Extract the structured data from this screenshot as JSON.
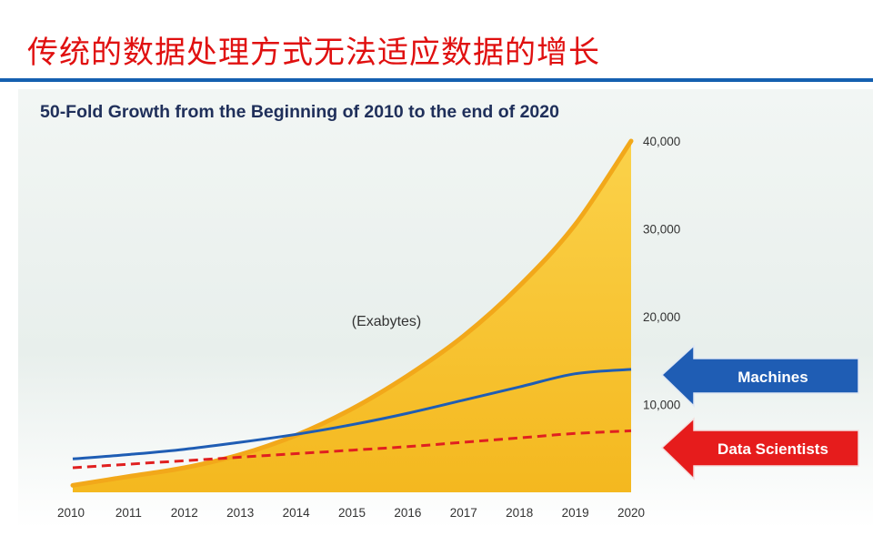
{
  "slide": {
    "title": "传统的数据处理方式无法适应数据的增长"
  },
  "chart_data": {
    "type": "area",
    "title": "50-Fold Growth from the Beginning of 2010 to the end of 2020",
    "unit_label": "(Exabytes)",
    "x": [
      2010,
      2011,
      2012,
      2013,
      2014,
      2015,
      2016,
      2017,
      2018,
      2019,
      2020
    ],
    "xlim": [
      2010,
      2020
    ],
    "ylim": [
      0,
      40000
    ],
    "yticks": [
      10000,
      20000,
      30000,
      40000
    ],
    "ytick_labels": [
      "10,000",
      "20,000",
      "30,000",
      "40,000"
    ],
    "series": [
      {
        "values": [
          800,
          1800,
          2800,
          4300,
          6500,
          9500,
          13300,
          17800,
          23500,
          30500,
          40000
        ],
        "color": "#f5c02a"
      },
      {
        "name": "Machines",
        "values": [
          3800,
          4300,
          4900,
          5700,
          6600,
          7700,
          9000,
          10500,
          12000,
          13500,
          14000
        ],
        "color": "#1f5db4"
      },
      {
        "name": "Data Scientists",
        "values": [
          2800,
          3200,
          3600,
          4000,
          4400,
          4800,
          5200,
          5700,
          6200,
          6700,
          7000
        ],
        "color": "#e02020"
      }
    ],
    "legend": {
      "placement": "right",
      "items": [
        {
          "label": "Machines",
          "color": "#1f5db4"
        },
        {
          "label": "Data Scientists",
          "color": "#e02020"
        }
      ]
    },
    "grid": false
  }
}
